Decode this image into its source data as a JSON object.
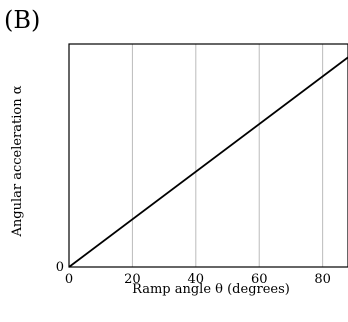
{
  "chart_data": {
    "type": "line",
    "panel_label": "(B)",
    "xlabel": "Ramp angle θ (degrees)",
    "ylabel": "Angular acceleration α",
    "xlim": [
      0,
      88
    ],
    "x_ticks": [
      0,
      20,
      40,
      60,
      80
    ],
    "x_tick_labels": [
      "0",
      "20",
      "40",
      "60",
      "80"
    ],
    "ylim": [
      0,
      1
    ],
    "y_ticks": [
      0
    ],
    "y_tick_labels": [
      "0"
    ],
    "grid": "vertical",
    "series": [
      {
        "x": [
          0,
          88
        ],
        "y": [
          0,
          0.94
        ]
      }
    ],
    "colors": {
      "line": "#000000",
      "grid": "#bbbbbb",
      "axes": "#000000"
    }
  }
}
